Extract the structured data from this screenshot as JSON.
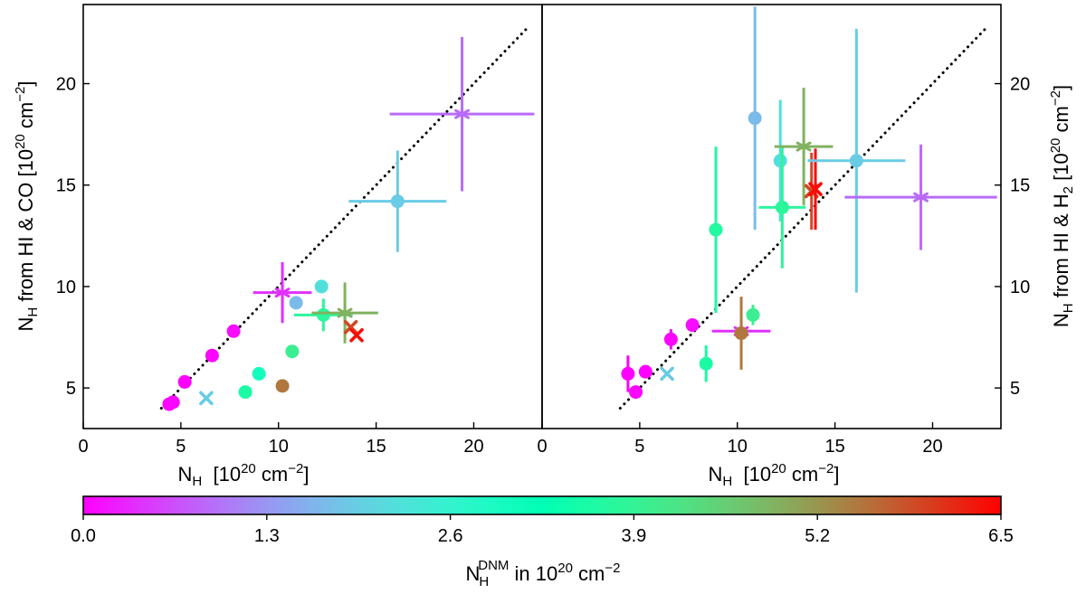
{
  "chart_data": [
    {
      "type": "scatter",
      "panel": "left",
      "xlabel": {
        "base": "N",
        "sub": "H",
        "unit_pre": "  [10",
        "unit_sup": "20",
        "unit_mid": " cm",
        "unit_sup2": "−2",
        "unit_post": "]"
      },
      "ylabel": {
        "base": "N",
        "sub": "H",
        "text": " from HI & CO [10",
        "unit_sup": "20",
        "unit_mid": " cm",
        "unit_sup2": "−2",
        "unit_post": "]"
      },
      "xlim": [
        0,
        23.5
      ],
      "ylim": [
        3,
        23.9
      ],
      "xticks": [
        0,
        5,
        10,
        15,
        20
      ],
      "yticks": [
        5,
        10,
        15,
        20
      ],
      "ytick_side": "left",
      "reference_line": {
        "style": "dotted",
        "from": [
          4.0,
          4.0
        ],
        "to": [
          22.7,
          22.7
        ]
      },
      "points": [
        {
          "x": 4.4,
          "y": 4.2,
          "c": 0.0,
          "m": "circle"
        },
        {
          "x": 4.6,
          "y": 4.3,
          "c": 0.05,
          "m": "circle"
        },
        {
          "x": 5.2,
          "y": 5.3,
          "c": 0.0,
          "m": "circle"
        },
        {
          "x": 6.3,
          "y": 4.5,
          "c": 1.9,
          "m": "x"
        },
        {
          "x": 6.6,
          "y": 6.6,
          "c": 0.05,
          "m": "circle"
        },
        {
          "x": 7.7,
          "y": 7.8,
          "c": 0.1,
          "m": "circle"
        },
        {
          "x": 8.3,
          "y": 4.8,
          "c": 3.6,
          "m": "circle"
        },
        {
          "x": 9.0,
          "y": 5.7,
          "c": 3.0,
          "m": "circle"
        },
        {
          "x": 10.2,
          "y": 9.7,
          "c": 0.4,
          "m": "star",
          "xerr": 1.5,
          "yerr": 1.5
        },
        {
          "x": 10.2,
          "y": 5.1,
          "c": 5.5,
          "m": "circle"
        },
        {
          "x": 10.7,
          "y": 6.8,
          "c": 4.0,
          "m": "circle"
        },
        {
          "x": 10.9,
          "y": 9.2,
          "c": 1.7,
          "m": "circle"
        },
        {
          "x": 12.2,
          "y": 10.0,
          "c": 2.2,
          "m": "circle"
        },
        {
          "x": 12.3,
          "y": 8.6,
          "c": 3.8,
          "m": "circle",
          "xerr": 1.5,
          "yerr": 0.8
        },
        {
          "x": 13.4,
          "y": 8.7,
          "c": 4.9,
          "m": "star",
          "xerr": 1.7,
          "yerr": 1.5
        },
        {
          "x": 13.7,
          "y": 8.0,
          "c": 5.9,
          "m": "x"
        },
        {
          "x": 14.0,
          "y": 7.6,
          "c": 6.4,
          "m": "x"
        },
        {
          "x": 16.1,
          "y": 14.2,
          "c": 1.9,
          "m": "circle",
          "xerr": 2.5,
          "yerr": 2.5
        },
        {
          "x": 19.4,
          "y": 18.5,
          "c": 0.9,
          "m": "star",
          "xerr": 3.7,
          "yerr": 3.8
        }
      ]
    },
    {
      "type": "scatter",
      "panel": "right",
      "xlabel": {
        "base": "N",
        "sub": "H",
        "unit_pre": "  [10",
        "unit_sup": "20",
        "unit_mid": " cm",
        "unit_sup2": "−2",
        "unit_post": "]"
      },
      "ylabel": {
        "base": "N",
        "sub": "H",
        "text": " from HI & H",
        "text_sub": "2",
        "unit_pre": " [10",
        "unit_sup": "20",
        "unit_mid": " cm",
        "unit_sup2": "−2",
        "unit_post": "]"
      },
      "xlim": [
        0,
        23.5
      ],
      "ylim": [
        3,
        23.9
      ],
      "xticks": [
        0,
        5,
        10,
        15,
        20
      ],
      "yticks": [
        5,
        10,
        15,
        20
      ],
      "ytick_side": "right",
      "reference_line": {
        "style": "dotted",
        "from": [
          4.0,
          4.0
        ],
        "to": [
          22.7,
          22.7
        ]
      },
      "points": [
        {
          "x": 4.4,
          "y": 5.7,
          "c": 0.0,
          "m": "circle",
          "yerr": 0.9
        },
        {
          "x": 4.8,
          "y": 4.8,
          "c": 0.05,
          "m": "circle"
        },
        {
          "x": 5.3,
          "y": 5.8,
          "c": 0.0,
          "m": "circle"
        },
        {
          "x": 6.4,
          "y": 5.7,
          "c": 1.9,
          "m": "x"
        },
        {
          "x": 6.6,
          "y": 7.4,
          "c": 0.05,
          "m": "circle",
          "yerr": 0.5
        },
        {
          "x": 7.7,
          "y": 8.1,
          "c": 0.1,
          "m": "circle"
        },
        {
          "x": 8.4,
          "y": 6.2,
          "c": 3.6,
          "m": "circle",
          "yerr": 0.9
        },
        {
          "x": 8.9,
          "y": 12.8,
          "c": 3.7,
          "m": "circle",
          "yerr": 4.1
        },
        {
          "x": 10.2,
          "y": 7.8,
          "c": 0.4,
          "m": "star",
          "xerr": 1.5
        },
        {
          "x": 10.2,
          "y": 7.7,
          "c": 5.5,
          "m": "circle",
          "yerr": 1.8
        },
        {
          "x": 10.8,
          "y": 8.6,
          "c": 4.0,
          "m": "circle",
          "yerr": 0.5
        },
        {
          "x": 10.9,
          "y": 18.3,
          "c": 1.7,
          "m": "circle",
          "yerr": 5.5
        },
        {
          "x": 12.2,
          "y": 16.2,
          "c": 2.2,
          "m": "circle",
          "yerr": 3.0
        },
        {
          "x": 12.3,
          "y": 13.9,
          "c": 3.8,
          "m": "circle",
          "xerr": 1.2,
          "yerr": 3.0
        },
        {
          "x": 13.4,
          "y": 16.9,
          "c": 4.9,
          "m": "star",
          "xerr": 1.5,
          "yerr": 2.9
        },
        {
          "x": 13.8,
          "y": 14.7,
          "c": 5.9,
          "m": "x",
          "yerr": 1.9
        },
        {
          "x": 14.0,
          "y": 14.8,
          "c": 6.4,
          "m": "x",
          "yerr": 2.0
        },
        {
          "x": 16.1,
          "y": 16.2,
          "c": 1.9,
          "m": "circle",
          "xerr": 2.5,
          "yerr": 6.5
        },
        {
          "x": 19.4,
          "y": 14.4,
          "c": 0.9,
          "m": "star",
          "xerr": 3.9,
          "yerr": 2.6
        }
      ]
    }
  ],
  "colorbar": {
    "colormap": "rainbow",
    "range": [
      0.0,
      6.5
    ],
    "ticks": [
      "0.0",
      "1.3",
      "2.6",
      "3.9",
      "5.2",
      "6.5"
    ],
    "label": {
      "base": "N",
      "sub": "H",
      "sup": "DNM",
      "text": " in 10",
      "sup2": "20",
      "text2": " cm",
      "sup3": "−2"
    }
  }
}
